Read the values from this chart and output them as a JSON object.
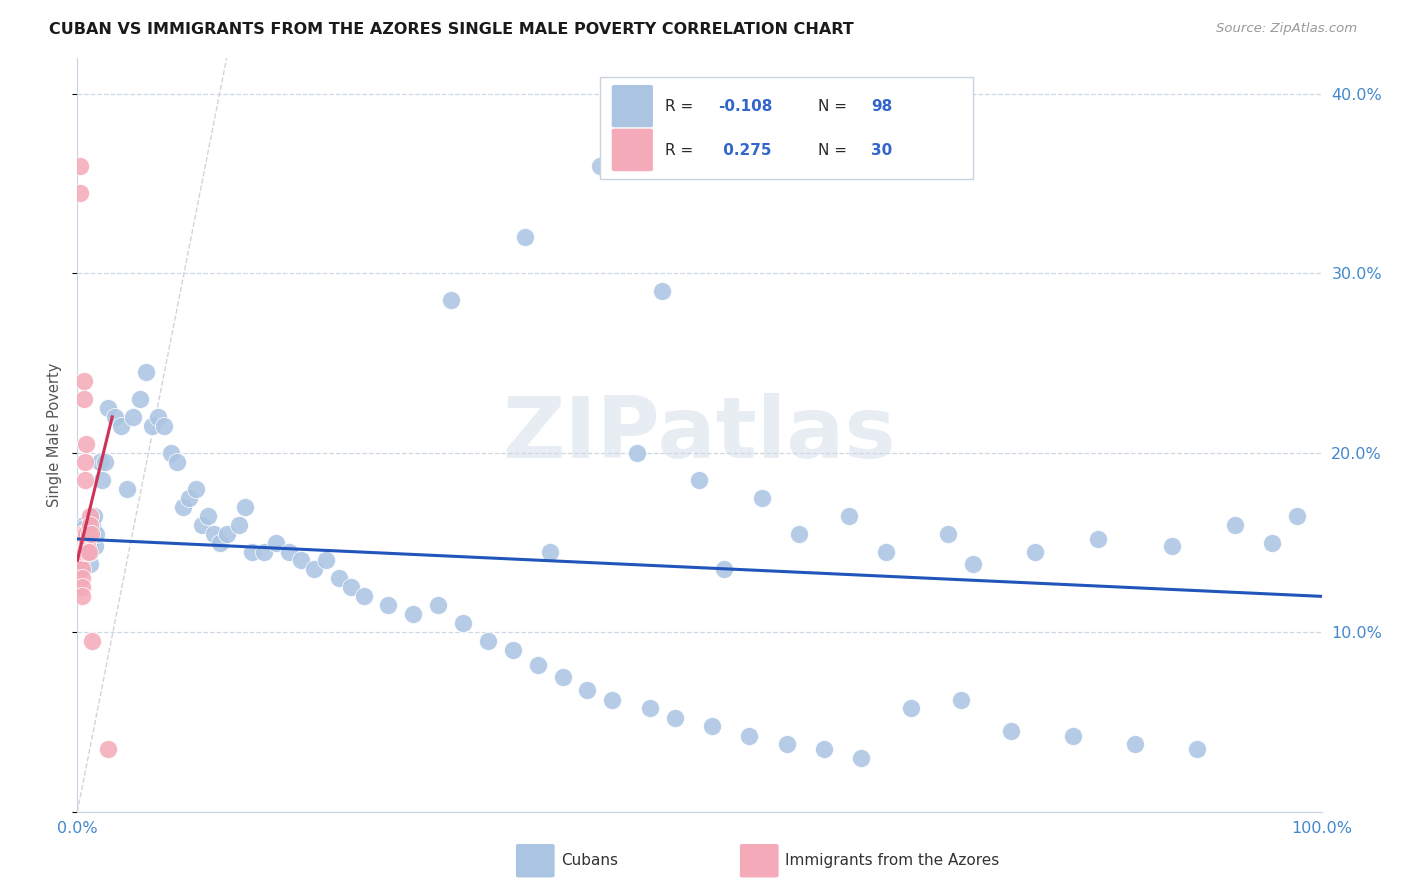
{
  "title": "CUBAN VS IMMIGRANTS FROM THE AZORES SINGLE MALE POVERTY CORRELATION CHART",
  "source": "Source: ZipAtlas.com",
  "ylabel": "Single Male Poverty",
  "watermark": "ZIPatlas",
  "legend_label1": "Cubans",
  "legend_label2": "Immigrants from the Azores",
  "blue_color": "#aac4e2",
  "pink_color": "#f4aab8",
  "blue_line_color": "#2255bb",
  "pink_line_color": "#cc3355",
  "title_color": "#1a1a1a",
  "source_color": "#999999",
  "axis_label_color": "#4488cc",
  "right_axis_color": "#4488cc",
  "grid_color": "#c8d4e0",
  "legend_val_color": "#3366cc",
  "cubans_x": [
    0.5,
    0.5,
    0.5,
    0.6,
    0.6,
    0.7,
    0.7,
    0.8,
    0.8,
    0.9,
    0.9,
    1.0,
    1.0,
    1.0,
    1.1,
    1.2,
    1.2,
    1.3,
    1.4,
    1.5,
    1.8,
    2.0,
    2.2,
    2.5,
    3.0,
    3.5,
    4.0,
    4.5,
    5.0,
    5.5,
    6.0,
    6.5,
    7.0,
    7.5,
    8.0,
    8.5,
    9.0,
    9.5,
    10.0,
    10.5,
    11.0,
    11.5,
    12.0,
    13.0,
    13.5,
    14.0,
    15.0,
    16.0,
    17.0,
    18.0,
    19.0,
    20.0,
    21.0,
    22.0,
    23.0,
    25.0,
    27.0,
    29.0,
    31.0,
    33.0,
    35.0,
    37.0,
    39.0,
    41.0,
    43.0,
    46.0,
    48.0,
    51.0,
    54.0,
    57.0,
    60.0,
    63.0,
    67.0,
    71.0,
    75.0,
    80.0,
    85.0,
    90.0,
    45.0,
    50.0,
    55.0,
    62.0,
    70.0,
    77.0,
    38.0,
    52.0,
    58.0,
    65.0,
    72.0,
    82.0,
    88.0,
    93.0,
    96.0,
    98.0,
    30.0,
    36.0,
    42.0,
    47.0
  ],
  "cubans_y": [
    15.5,
    16.0,
    15.8,
    15.0,
    15.5,
    14.8,
    15.2,
    14.5,
    15.0,
    14.8,
    15.0,
    13.8,
    14.5,
    14.8,
    15.5,
    16.0,
    15.2,
    16.5,
    14.8,
    15.5,
    19.5,
    18.5,
    19.5,
    22.5,
    22.0,
    21.5,
    18.0,
    22.0,
    23.0,
    24.5,
    21.5,
    22.0,
    21.5,
    20.0,
    19.5,
    17.0,
    17.5,
    18.0,
    16.0,
    16.5,
    15.5,
    15.0,
    15.5,
    16.0,
    17.0,
    14.5,
    14.5,
    15.0,
    14.5,
    14.0,
    13.5,
    14.0,
    13.0,
    12.5,
    12.0,
    11.5,
    11.0,
    11.5,
    10.5,
    9.5,
    9.0,
    8.2,
    7.5,
    6.8,
    6.2,
    5.8,
    5.2,
    4.8,
    4.2,
    3.8,
    3.5,
    3.0,
    5.8,
    6.2,
    4.5,
    4.2,
    3.8,
    3.5,
    20.0,
    18.5,
    17.5,
    16.5,
    15.5,
    14.5,
    14.5,
    13.5,
    15.5,
    14.5,
    13.8,
    15.2,
    14.8,
    16.0,
    15.0,
    16.5,
    28.5,
    32.0,
    36.0,
    29.0
  ],
  "azores_x": [
    0.2,
    0.2,
    0.3,
    0.3,
    0.3,
    0.3,
    0.3,
    0.3,
    0.4,
    0.4,
    0.4,
    0.4,
    0.5,
    0.5,
    0.5,
    0.5,
    0.6,
    0.6,
    0.7,
    0.7,
    0.7,
    0.8,
    0.8,
    0.9,
    0.9,
    1.0,
    1.0,
    1.1,
    1.2,
    2.5
  ],
  "azores_y": [
    34.5,
    36.0,
    14.5,
    14.8,
    15.0,
    15.5,
    14.2,
    14.0,
    13.5,
    13.0,
    12.5,
    12.0,
    24.0,
    23.0,
    15.5,
    14.5,
    19.5,
    18.5,
    15.5,
    14.8,
    20.5,
    15.0,
    14.5,
    15.5,
    14.5,
    16.5,
    16.0,
    15.5,
    9.5,
    3.5
  ],
  "ylim": [
    0.0,
    42.0
  ],
  "xlim": [
    0.0,
    100.0
  ],
  "yticks": [
    0.0,
    10.0,
    20.0,
    30.0,
    40.0
  ],
  "ytick_labels_right": [
    "",
    "10.0%",
    "20.0%",
    "30.0%",
    "40.0%"
  ],
  "xticks": [
    0.0,
    25.0,
    50.0,
    75.0,
    100.0
  ],
  "xtick_labels": [
    "0.0%",
    "",
    "",
    "",
    "100.0%"
  ]
}
